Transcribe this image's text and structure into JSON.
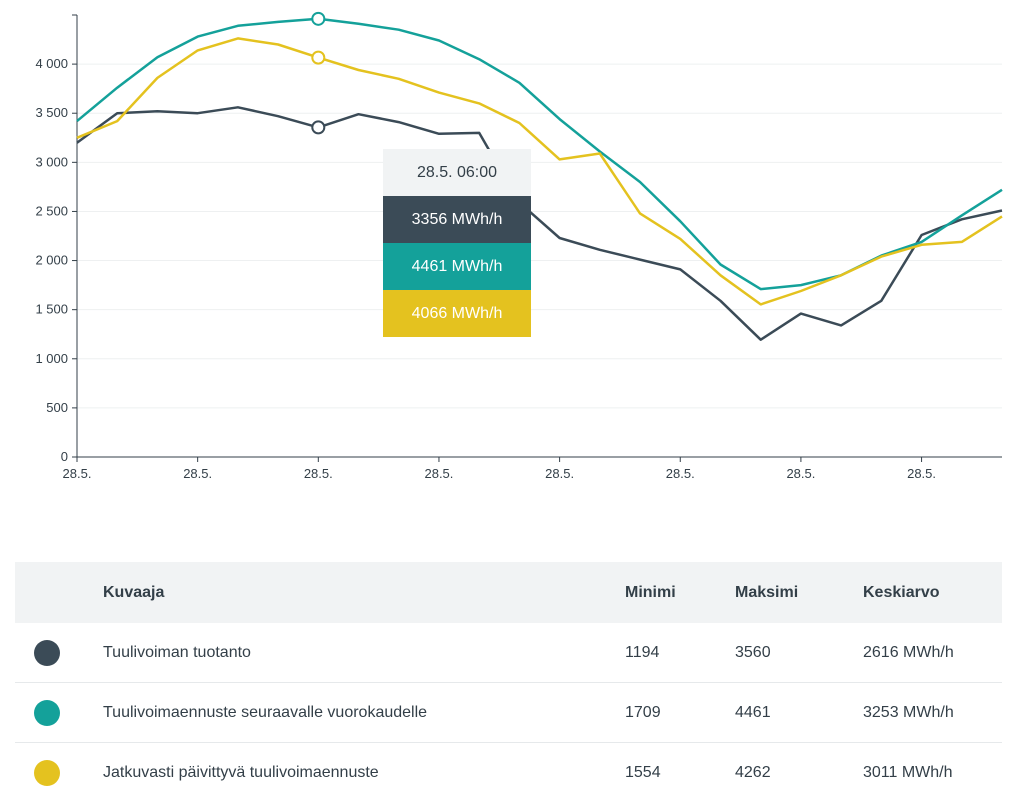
{
  "chart_data": {
    "type": "line",
    "title": "",
    "xlabel": "",
    "ylabel": "",
    "ylim": [
      0,
      4500
    ],
    "y_ticks": [
      0,
      500,
      1000,
      1500,
      2000,
      2500,
      3000,
      3500,
      4000
    ],
    "y_tick_labels": [
      "0",
      "500",
      "1 000",
      "1 500",
      "2 000",
      "2 500",
      "3 000",
      "3 500",
      "4 000"
    ],
    "x_hours": [
      0,
      1,
      2,
      3,
      4,
      5,
      6,
      7,
      8,
      9,
      10,
      11,
      12,
      13,
      14,
      15,
      16,
      17,
      18,
      19,
      20,
      21,
      22,
      23
    ],
    "x_tick_hours": [
      0,
      3,
      6,
      9,
      12,
      15,
      18,
      21
    ],
    "x_tick_labels": [
      "28.5.",
      "28.5.",
      "28.5.",
      "28.5.",
      "28.5.",
      "28.5.",
      "28.5.",
      "28.5."
    ],
    "grid": true,
    "series": [
      {
        "name": "Tuulivoiman tuotanto",
        "color": "#3b4b57",
        "values": [
          3200,
          3500,
          3520,
          3500,
          3560,
          3470,
          3356,
          3490,
          3410,
          3290,
          3300,
          2590,
          2230,
          2110,
          2010,
          1910,
          1590,
          1194,
          1460,
          1340,
          1590,
          2260,
          2420,
          2510
        ]
      },
      {
        "name": "Tuulivoimaennuste seuraavalle vuorokaudelle",
        "color": "#14a19a",
        "values": [
          3420,
          3760,
          4070,
          4280,
          4390,
          4430,
          4461,
          4410,
          4350,
          4240,
          4050,
          3810,
          3440,
          3110,
          2800,
          2400,
          1960,
          1709,
          1750,
          1850,
          2050,
          2190,
          2460,
          2720
        ]
      },
      {
        "name": "Jatkuvasti päivittyvä tuulivoimaennuste",
        "color": "#e4c21f",
        "values": [
          3250,
          3420,
          3860,
          4140,
          4262,
          4200,
          4066,
          3940,
          3850,
          3710,
          3600,
          3400,
          3030,
          3090,
          2480,
          2220,
          1850,
          1554,
          1690,
          1850,
          2040,
          2160,
          2190,
          2450
        ]
      }
    ],
    "highlight_hour": 6,
    "tooltip": {
      "label": "28.5. 06:00",
      "values": [
        "3356 MWh/h",
        "4461 MWh/h",
        "4066 MWh/h"
      ]
    }
  },
  "table": {
    "headers": [
      "Kuvaaja",
      "Minimi",
      "Maksimi",
      "Keskiarvo"
    ],
    "rows": [
      {
        "name": "Tuulivoiman tuotanto",
        "min": "1194",
        "max": "3560",
        "avg": "2616 MWh/h",
        "color": "#3b4b57"
      },
      {
        "name": "Tuulivoimaennuste seuraavalle vuorokaudelle",
        "min": "1709",
        "max": "4461",
        "avg": "3253 MWh/h",
        "color": "#14a19a"
      },
      {
        "name": "Jatkuvasti päivittyvä tuulivoimaennuste",
        "min": "1554",
        "max": "4262",
        "avg": "3011 MWh/h",
        "color": "#e4c21f"
      }
    ]
  }
}
